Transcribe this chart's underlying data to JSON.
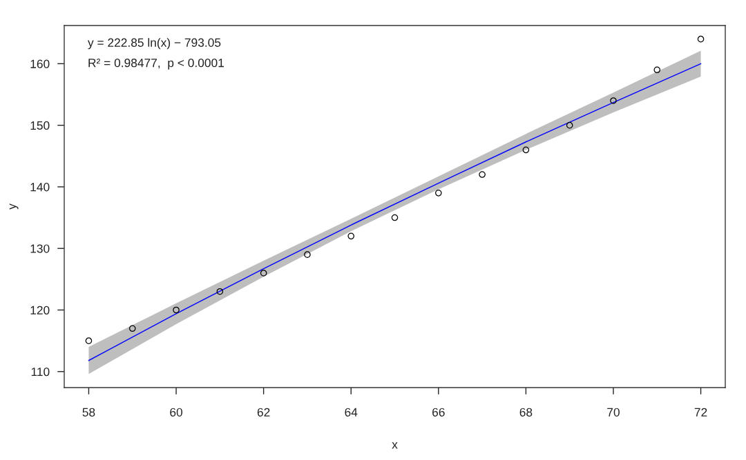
{
  "chart_data": {
    "type": "scatter",
    "xlabel": "x",
    "ylabel": "y",
    "xlim": [
      57.44,
      72.56
    ],
    "ylim": [
      107.4,
      166.2
    ],
    "xticks": [
      58,
      60,
      62,
      64,
      66,
      68,
      70,
      72
    ],
    "yticks": [
      110,
      120,
      130,
      140,
      150,
      160
    ],
    "grid": false,
    "annotations": [
      "y = 222.85 ln(x) − 793.05",
      "R² = 0.98477,  p < 0.0001"
    ],
    "series": [
      {
        "color": "#000000",
        "marker": "circle",
        "x": [
          58,
          59,
          60,
          61,
          62,
          63,
          64,
          65,
          66,
          67,
          68,
          69,
          70,
          71,
          72
        ],
        "values": [
          115,
          117,
          120,
          123,
          126,
          129,
          132,
          135,
          139,
          142,
          146,
          150,
          154,
          159,
          164
        ]
      },
      {
        "type": "line",
        "color": "#0000ff",
        "marker": "none",
        "line_style": "solid",
        "x": [
          58,
          60,
          62,
          64,
          66,
          68,
          70,
          72
        ],
        "values": [
          111.8,
          119.4,
          126.7,
          133.8,
          140.6,
          147.3,
          153.7,
          160.0
        ],
        "lower": [
          109.6,
          117.7,
          125.4,
          132.8,
          139.6,
          146.0,
          152.1,
          157.9
        ],
        "upper": [
          114.0,
          121.1,
          128.0,
          134.8,
          141.7,
          148.6,
          155.3,
          162.1
        ]
      }
    ]
  }
}
